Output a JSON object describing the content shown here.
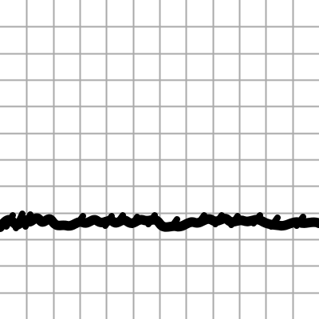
{
  "canvas": {
    "background": "#ffffff",
    "grid": {
      "visible": true,
      "color": "#aaaaaa",
      "columns": 12,
      "rows": 12
    },
    "stroke": {
      "color": "#000000",
      "style": "scribble",
      "description_visible": false
    }
  }
}
